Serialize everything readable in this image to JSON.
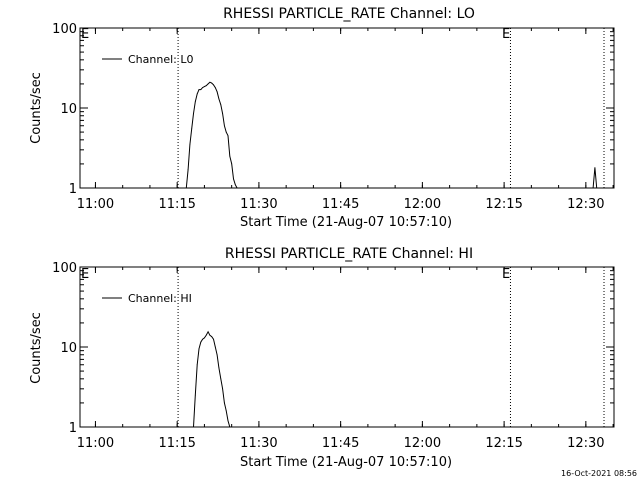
{
  "chart_data": [
    {
      "type": "line",
      "title": "RHESSI PARTICLE_RATE Channel: LO",
      "xlabel": "Start Time (21-Aug-07 10:57:10)",
      "ylabel": "Counts/sec",
      "yscale": "log",
      "ylim": [
        1,
        100
      ],
      "xlim": [
        "10:57:10",
        "12:35:10"
      ],
      "x_tick_labels": [
        "11:00",
        "11:15",
        "11:30",
        "11:45",
        "12:00",
        "12:15",
        "12:30"
      ],
      "x_ticks": [
        "11:00",
        "11:15",
        "11:30",
        "11:45",
        "12:00",
        "12:15",
        "12:30"
      ],
      "y_tick_labels": [
        "1",
        "10",
        "100"
      ],
      "y_ticks": [
        1,
        10,
        100
      ],
      "grid": false,
      "legend": "top-left",
      "series": [
        {
          "name": "Channel: L0",
          "x": [
            "11:16:40",
            "11:17:00",
            "11:17:20",
            "11:17:40",
            "11:18:00",
            "11:18:20",
            "11:18:40",
            "11:19:00",
            "11:19:20",
            "11:19:40",
            "11:20:00",
            "11:20:20",
            "11:20:40",
            "11:21:00",
            "11:21:20",
            "11:21:40",
            "11:22:00",
            "11:22:20",
            "11:22:40",
            "11:23:00",
            "11:23:20",
            "11:23:40",
            "11:24:00",
            "11:24:20",
            "11:24:40",
            "11:25:00",
            "11:25:20",
            "11:25:40",
            "11:26:00",
            "12:31:20",
            "12:31:40",
            "12:32:00"
          ],
          "y": [
            1.0,
            1.7,
            3.5,
            5.5,
            8.5,
            12,
            15,
            17,
            17,
            18,
            18.5,
            19,
            20,
            21,
            20.5,
            19.5,
            18,
            16,
            13,
            11,
            8.5,
            6,
            5,
            4.5,
            2.5,
            2.0,
            1.3,
            1.1,
            1.0,
            1.0,
            1.8,
            1.0
          ]
        }
      ],
      "annotations": [
        {
          "type": "vline",
          "x": "11:15:10"
        },
        {
          "type": "vline",
          "x": "12:16:10",
          "label": "E"
        },
        {
          "type": "vline",
          "x": "12:33:20"
        },
        {
          "type": "label",
          "text": "E",
          "position": "top-left"
        }
      ]
    },
    {
      "type": "line",
      "title": "RHESSI PARTICLE_RATE Channel: HI",
      "xlabel": "Start Time (21-Aug-07 10:57:10)",
      "ylabel": "Counts/sec",
      "yscale": "log",
      "ylim": [
        1,
        100
      ],
      "xlim": [
        "10:57:10",
        "12:35:10"
      ],
      "x_tick_labels": [
        "11:00",
        "11:15",
        "11:30",
        "11:45",
        "12:00",
        "12:15",
        "12:30"
      ],
      "x_ticks": [
        "11:00",
        "11:15",
        "11:30",
        "11:45",
        "12:00",
        "12:15",
        "12:30"
      ],
      "y_tick_labels": [
        "1",
        "10",
        "100"
      ],
      "y_ticks": [
        1,
        10,
        100
      ],
      "grid": false,
      "legend": "top-left",
      "series": [
        {
          "name": "Channel: HI",
          "x": [
            "11:18:00",
            "11:18:20",
            "11:18:40",
            "11:19:00",
            "11:19:20",
            "11:19:40",
            "11:20:00",
            "11:20:20",
            "11:20:40",
            "11:21:00",
            "11:21:20",
            "11:21:40",
            "11:22:00",
            "11:22:20",
            "11:22:40",
            "11:23:00",
            "11:23:20",
            "11:23:40",
            "11:24:00",
            "11:24:20",
            "11:24:40"
          ],
          "y": [
            1.0,
            2.5,
            6,
            9.5,
            11.5,
            12.5,
            13,
            14,
            15.5,
            14,
            13.5,
            12.5,
            10,
            8,
            5.5,
            4,
            3,
            2,
            1.6,
            1.2,
            1.0
          ]
        }
      ],
      "annotations": [
        {
          "type": "vline",
          "x": "11:15:10"
        },
        {
          "type": "vline",
          "x": "12:16:10",
          "label": "E"
        },
        {
          "type": "vline",
          "x": "12:33:20"
        },
        {
          "type": "label",
          "text": "E",
          "position": "top-left"
        }
      ]
    }
  ],
  "footer": {
    "timestamp": "16-Oct-2021 08:56"
  }
}
